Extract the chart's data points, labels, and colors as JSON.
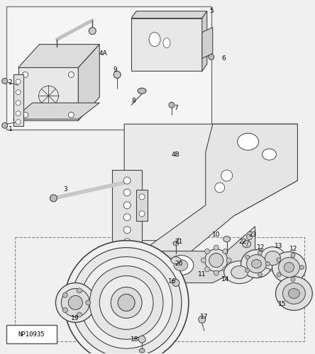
{
  "part_number": "NP10935",
  "bg_color": "#f0f0f0",
  "line_color": "#444444",
  "inset_bg": "#f8f8f8",
  "inset_border": "#888888"
}
